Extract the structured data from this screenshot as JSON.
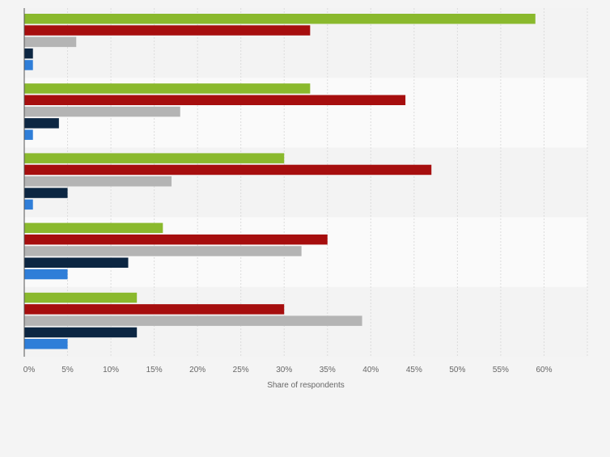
{
  "chart_data": {
    "type": "bar",
    "orientation": "horizontal",
    "xlabel": "Share of respondents",
    "xlim": [
      0,
      65
    ],
    "x_ticks": [
      0,
      5,
      10,
      15,
      20,
      25,
      30,
      35,
      40,
      45,
      50,
      55,
      60
    ],
    "x_tick_labels": [
      "0%",
      "5%",
      "10%",
      "15%",
      "20%",
      "25%",
      "30%",
      "35%",
      "40%",
      "45%",
      "50%",
      "55%",
      "60%"
    ],
    "grid": true,
    "legend": "none",
    "group_count": 5,
    "series": [
      {
        "color": "#8ab92d",
        "values": [
          59,
          33,
          30,
          16,
          13
        ]
      },
      {
        "color": "#a60e0e",
        "values": [
          33,
          44,
          47,
          35,
          30
        ]
      },
      {
        "color": "#b4b4b4",
        "values": [
          6,
          18,
          17,
          32,
          39
        ]
      },
      {
        "color": "#0c2642",
        "values": [
          1,
          4,
          5,
          12,
          13
        ]
      },
      {
        "color": "#2f7ed8",
        "values": [
          1,
          1,
          1,
          5,
          5
        ]
      }
    ]
  }
}
